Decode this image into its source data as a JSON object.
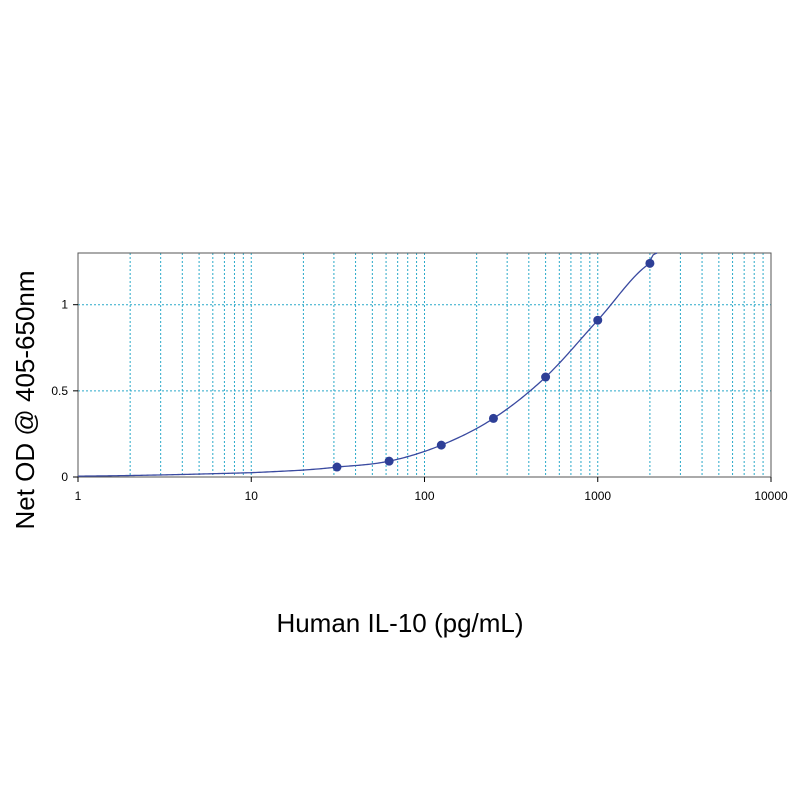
{
  "chart_data": {
    "type": "scatter",
    "title": "",
    "xlabel": "Human IL-10 (pg/mL)",
    "ylabel": "Net OD @ 405-650nm",
    "x_scale": "log",
    "xlim": [
      1,
      10000
    ],
    "ylim": [
      0,
      1.3
    ],
    "x_ticks": [
      1,
      10,
      100,
      1000,
      10000
    ],
    "x_tick_labels": [
      "1",
      "10",
      "100",
      "1000",
      "10000"
    ],
    "y_ticks": [
      0,
      0.5,
      1
    ],
    "y_tick_labels": [
      "0",
      "0.5",
      "1"
    ],
    "grid": true,
    "legend": "none",
    "series": [
      {
        "x": [
          31.25,
          62.5,
          125,
          250,
          500,
          1000,
          2000
        ],
        "y": [
          0.058,
          0.092,
          0.185,
          0.34,
          0.58,
          0.91,
          1.24
        ]
      }
    ],
    "fit_curve": {
      "x": [
        1,
        3,
        10,
        20,
        31.25,
        62.5,
        125,
        250,
        500,
        1000,
        2000,
        2200
      ],
      "y": [
        0.005,
        0.012,
        0.025,
        0.04,
        0.058,
        0.092,
        0.185,
        0.34,
        0.58,
        0.91,
        1.24,
        1.3
      ]
    },
    "colors": {
      "marker": "#2e3f97",
      "curve": "#3a4aa0",
      "grid": "#2aa9c9",
      "axis": "#000000"
    }
  }
}
